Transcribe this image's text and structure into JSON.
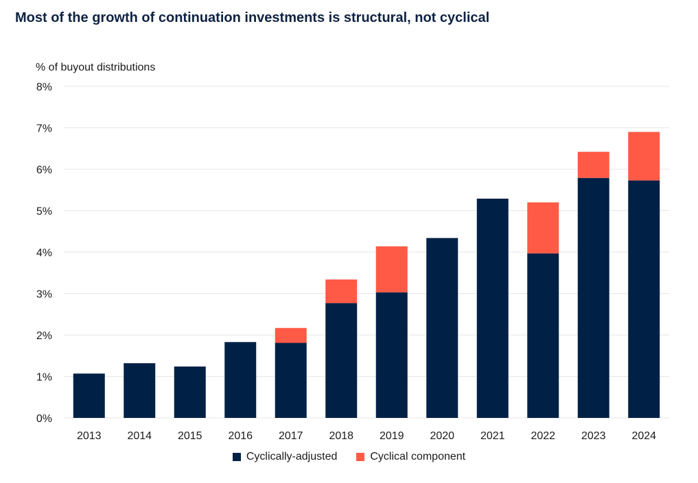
{
  "colors": {
    "adjusted": "#012045",
    "cyclical": "#ff5a46",
    "grid": "#e6e6e6"
  },
  "chart_data": {
    "type": "bar",
    "stacked": true,
    "title": "Most of the growth of continuation investments is structural, not cyclical",
    "ylabel": "% of buyout distributions",
    "xlabel": "",
    "ylim": [
      0,
      8
    ],
    "yticks": [
      "0%",
      "1%",
      "2%",
      "3%",
      "4%",
      "5%",
      "6%",
      "7%",
      "8%"
    ],
    "categories": [
      "2013",
      "2014",
      "2015",
      "2016",
      "2017",
      "2018",
      "2019",
      "2020",
      "2021",
      "2022",
      "2023",
      "2024"
    ],
    "series": [
      {
        "name": "Cyclically-adjusted",
        "values": [
          1.07,
          1.32,
          1.24,
          1.83,
          1.81,
          2.77,
          3.03,
          4.34,
          5.29,
          3.97,
          5.79,
          5.73
        ]
      },
      {
        "name": "Cyclical component",
        "values": [
          0,
          0,
          0,
          0,
          0.36,
          0.57,
          1.11,
          0,
          0,
          1.23,
          0.63,
          1.17
        ]
      }
    ],
    "grid": true,
    "legend": "bottom-center"
  }
}
